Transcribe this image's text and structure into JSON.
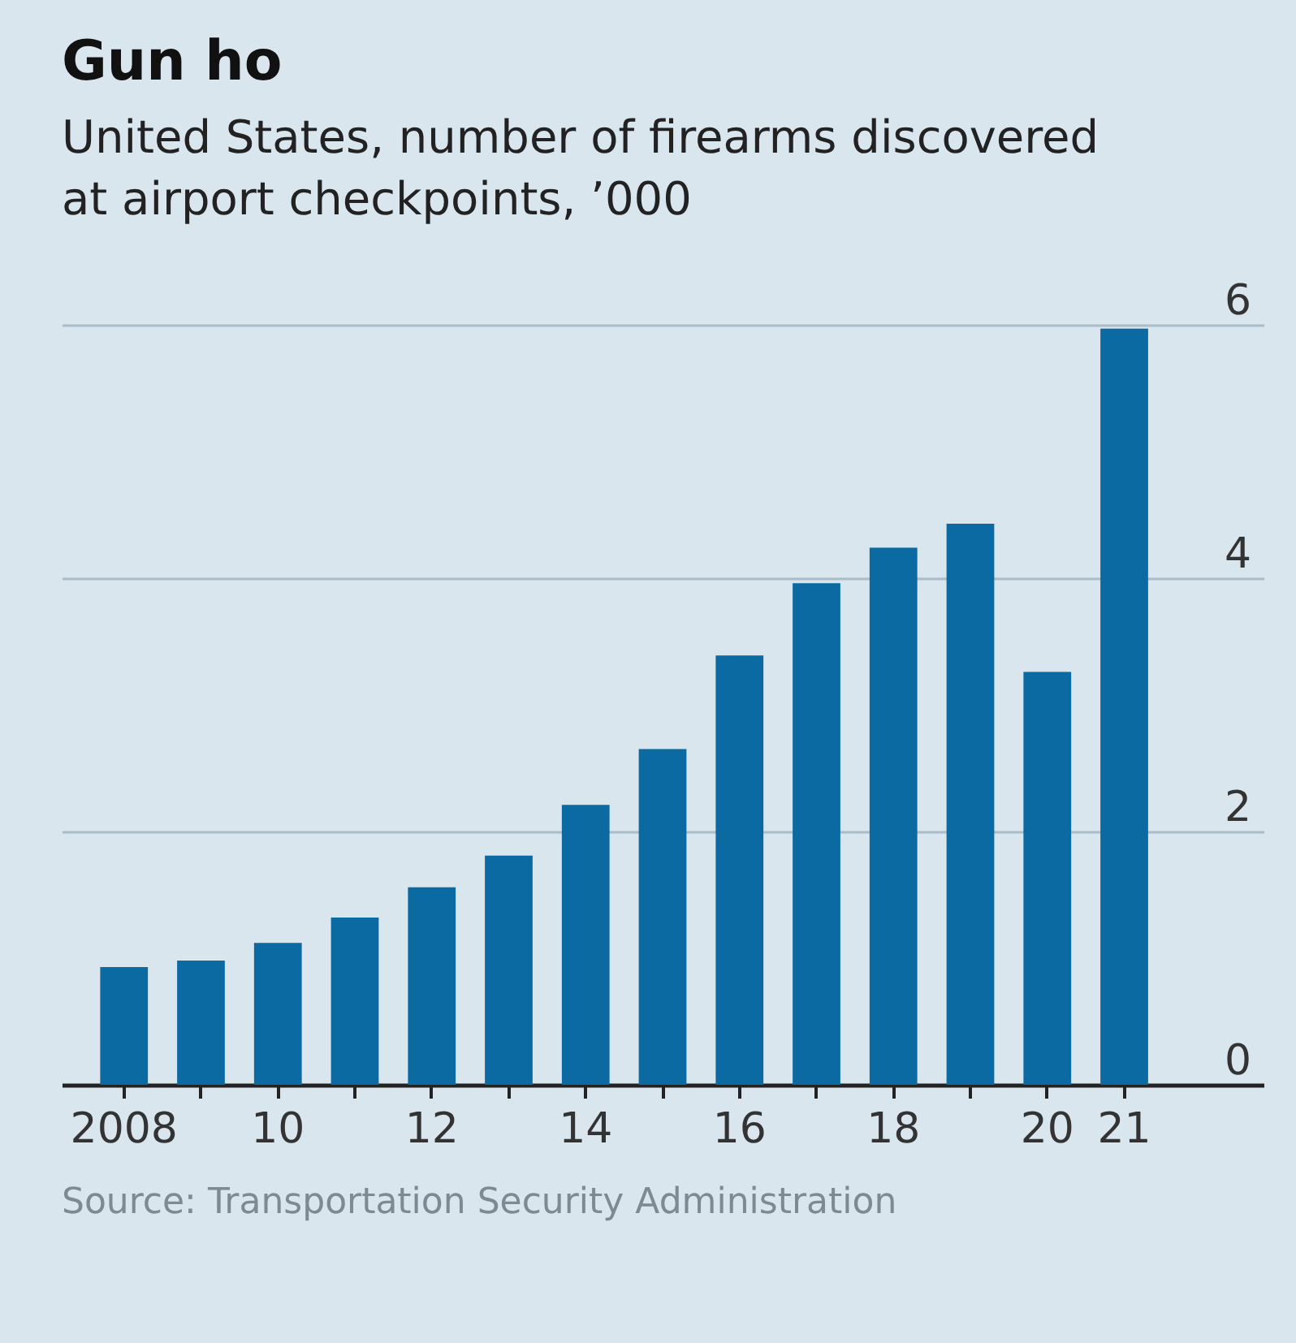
{
  "chart_data": {
    "type": "bar",
    "title": "Gun ho",
    "subtitle": "United States, number of firearms discovered at airport checkpoints, ’000",
    "categories": [
      "2008",
      null,
      "10",
      null,
      "12",
      null,
      "14",
      null,
      "16",
      null,
      "18",
      null,
      "20",
      "21"
    ],
    "values": [
      0.93,
      0.98,
      1.12,
      1.32,
      1.56,
      1.81,
      2.21,
      2.65,
      3.39,
      3.96,
      4.24,
      4.43,
      3.26,
      5.97
    ],
    "color": "#0b6aa2",
    "ylim": [
      0,
      6
    ],
    "yticks": [
      0,
      2,
      4,
      6
    ],
    "grid": "y",
    "annotations": [
      "Source: Transportation Security Administration"
    ]
  }
}
